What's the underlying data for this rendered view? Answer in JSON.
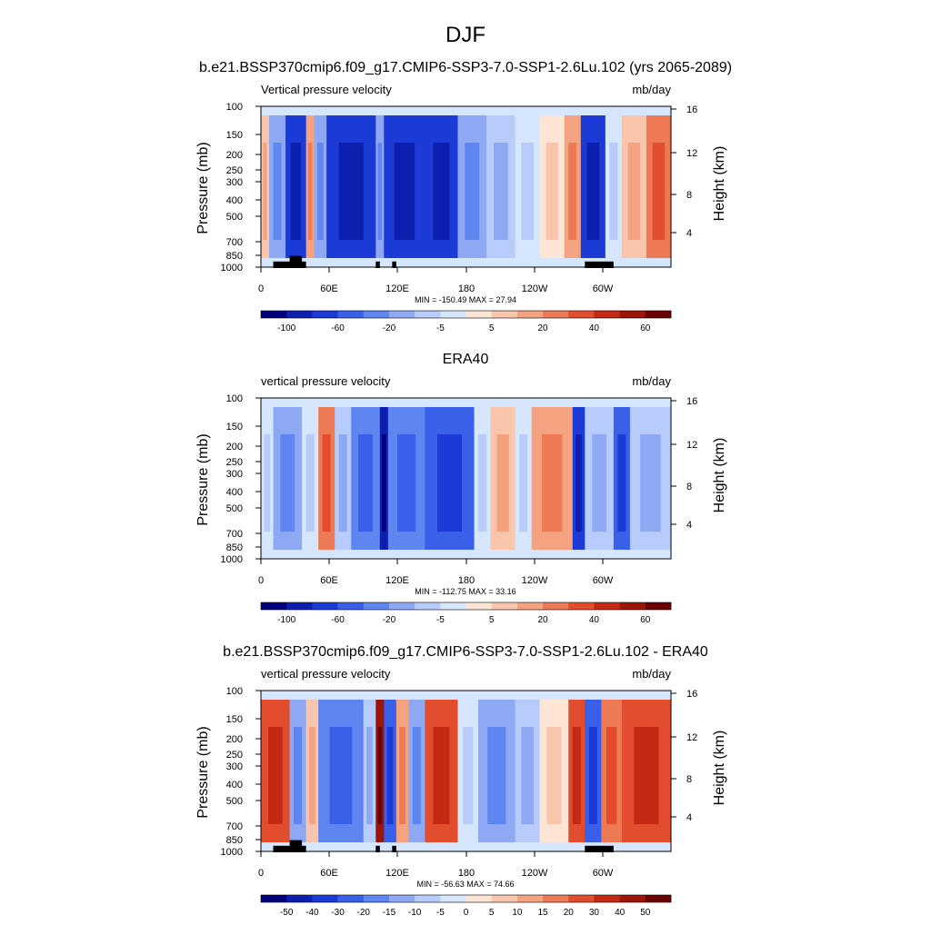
{
  "page": {
    "title": "DJF"
  },
  "colors": {
    "diverging": [
      "#00007f",
      "#0d1fae",
      "#1c3bd6",
      "#3a5fe8",
      "#5f86f0",
      "#8ea8f4",
      "#b7ccfa",
      "#d6e6fd",
      "#fde5d6",
      "#f9c6ad",
      "#f4a280",
      "#ee7a55",
      "#e24e2d",
      "#c42a13",
      "#9c1508",
      "#6a0000"
    ],
    "land": "#000000"
  },
  "chart_data": [
    {
      "type": "heatmap",
      "title": "b.e21.BSSP370cmip6.f09_g17.CMIP6-SSP3-7.0-SSP1-2.6Lu.102 (yrs 2065-2089)",
      "left_label": "Vertical pressure velocity",
      "units": "mb/day",
      "ylabel": "Pressure (mb)",
      "ylabel_right": "Height (km)",
      "y_ticks": [
        "100",
        "150",
        "200",
        "250",
        "300",
        "400",
        "500",
        "700",
        "850",
        "1000"
      ],
      "y_right_ticks": [
        "16",
        "12",
        "8",
        "4"
      ],
      "x_ticks": [
        "0",
        "60E",
        "120E",
        "180",
        "120W",
        "60W"
      ],
      "stats": "MIN = -150.49  MAX =  27.94",
      "colorbar_labels": [
        "-100",
        "-60",
        "-20",
        "-5",
        "5",
        "20",
        "40",
        "60"
      ]
    },
    {
      "type": "heatmap",
      "title": "ERA40",
      "left_label": "vertical pressure velocity",
      "units": "mb/day",
      "ylabel": "Pressure (mb)",
      "ylabel_right": "Height (km)",
      "y_ticks": [
        "100",
        "150",
        "200",
        "250",
        "300",
        "400",
        "500",
        "700",
        "850",
        "1000"
      ],
      "y_right_ticks": [
        "16",
        "12",
        "8",
        "4"
      ],
      "x_ticks": [
        "0",
        "60E",
        "120E",
        "180",
        "120W",
        "60W"
      ],
      "stats": "MIN = -112.75  MAX =  33.16",
      "colorbar_labels": [
        "-100",
        "-60",
        "-20",
        "-5",
        "5",
        "20",
        "40",
        "60"
      ]
    },
    {
      "type": "heatmap",
      "title": "b.e21.BSSP370cmip6.f09_g17.CMIP6-SSP3-7.0-SSP1-2.6Lu.102 - ERA40",
      "left_label": "vertical pressure velocity",
      "units": "mb/day",
      "ylabel": "Pressure (mb)",
      "ylabel_right": "Height (km)",
      "y_ticks": [
        "100",
        "150",
        "200",
        "250",
        "300",
        "400",
        "500",
        "700",
        "850",
        "1000"
      ],
      "y_right_ticks": [
        "16",
        "12",
        "8",
        "4"
      ],
      "x_ticks": [
        "0",
        "60E",
        "120E",
        "180",
        "120W",
        "60W"
      ],
      "stats": "MIN = -56.63  MAX =  74.66",
      "colorbar_labels": [
        "-50",
        "-40",
        "-30",
        "-20",
        "-15",
        "-10",
        "-5",
        "0",
        "5",
        "10",
        "15",
        "20",
        "30",
        "40",
        "50"
      ]
    }
  ]
}
